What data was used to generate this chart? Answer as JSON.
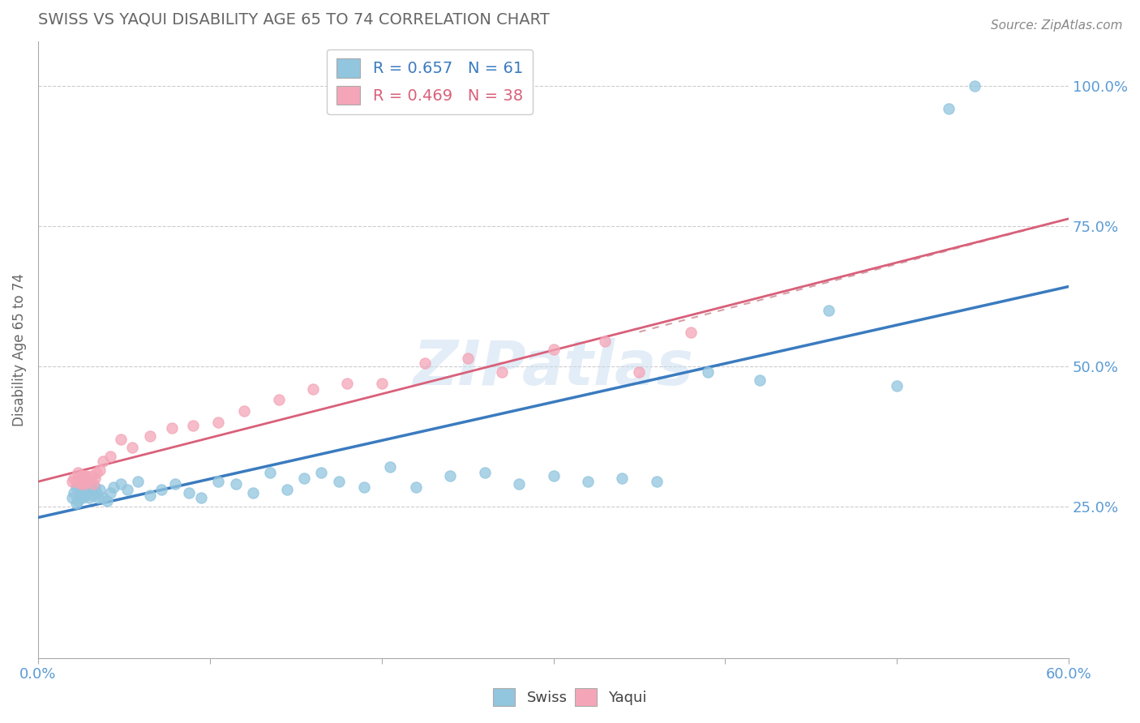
{
  "title": "SWISS VS YAQUI DISABILITY AGE 65 TO 74 CORRELATION CHART",
  "source_text": "Source: ZipAtlas.com",
  "ylabel": "Disability Age 65 to 74",
  "xlim": [
    0.0,
    0.6
  ],
  "ylim": [
    -0.02,
    1.08
  ],
  "yticks": [
    0.25,
    0.5,
    0.75,
    1.0
  ],
  "ytick_labels": [
    "25.0%",
    "50.0%",
    "75.0%",
    "100.0%"
  ],
  "xticks": [
    0.0,
    0.1,
    0.2,
    0.3,
    0.4,
    0.5,
    0.6
  ],
  "xtick_labels": [
    "0.0%",
    "",
    "",
    "",
    "",
    "",
    "60.0%"
  ],
  "legend_swiss": "R = 0.657   N = 61",
  "legend_yaqui": "R = 0.469   N = 38",
  "swiss_color": "#92c5de",
  "yaqui_color": "#f4a6b8",
  "swiss_line_color": "#3a7bbf",
  "yaqui_line_color": "#d9607a",
  "yaqui_dash_color": "#d4a0a8",
  "grid_color": "#cccccc",
  "title_color": "#666666",
  "axis_color": "#5b9bd5",
  "watermark": "ZIPatlas",
  "swiss_x": [
    0.02,
    0.021,
    0.022,
    0.022,
    0.023,
    0.023,
    0.024,
    0.024,
    0.025,
    0.025,
    0.026,
    0.026,
    0.027,
    0.027,
    0.028,
    0.028,
    0.029,
    0.03,
    0.03,
    0.031,
    0.032,
    0.033,
    0.034,
    0.035,
    0.036,
    0.038,
    0.04,
    0.042,
    0.044,
    0.048,
    0.052,
    0.058,
    0.065,
    0.072,
    0.08,
    0.088,
    0.095,
    0.105,
    0.115,
    0.125,
    0.135,
    0.145,
    0.155,
    0.165,
    0.175,
    0.19,
    0.205,
    0.22,
    0.24,
    0.26,
    0.28,
    0.3,
    0.32,
    0.34,
    0.36,
    0.39,
    0.42,
    0.46,
    0.5,
    0.53,
    0.545
  ],
  "swiss_y": [
    0.265,
    0.275,
    0.255,
    0.285,
    0.26,
    0.29,
    0.265,
    0.285,
    0.27,
    0.295,
    0.265,
    0.29,
    0.275,
    0.3,
    0.27,
    0.295,
    0.28,
    0.265,
    0.29,
    0.28,
    0.27,
    0.285,
    0.275,
    0.265,
    0.28,
    0.265,
    0.26,
    0.275,
    0.285,
    0.29,
    0.28,
    0.295,
    0.27,
    0.28,
    0.29,
    0.275,
    0.265,
    0.295,
    0.29,
    0.275,
    0.31,
    0.28,
    0.3,
    0.31,
    0.295,
    0.285,
    0.32,
    0.285,
    0.305,
    0.31,
    0.29,
    0.305,
    0.295,
    0.3,
    0.295,
    0.49,
    0.475,
    0.6,
    0.465,
    0.96,
    1.0
  ],
  "yaqui_x": [
    0.02,
    0.021,
    0.022,
    0.023,
    0.024,
    0.025,
    0.025,
    0.026,
    0.027,
    0.027,
    0.028,
    0.029,
    0.03,
    0.031,
    0.032,
    0.033,
    0.034,
    0.036,
    0.038,
    0.042,
    0.048,
    0.055,
    0.065,
    0.078,
    0.09,
    0.105,
    0.12,
    0.14,
    0.16,
    0.18,
    0.2,
    0.225,
    0.25,
    0.27,
    0.3,
    0.33,
    0.35,
    0.38
  ],
  "yaqui_y": [
    0.295,
    0.3,
    0.295,
    0.31,
    0.295,
    0.305,
    0.29,
    0.295,
    0.305,
    0.29,
    0.305,
    0.295,
    0.295,
    0.305,
    0.29,
    0.3,
    0.31,
    0.315,
    0.33,
    0.34,
    0.37,
    0.355,
    0.375,
    0.39,
    0.395,
    0.4,
    0.42,
    0.44,
    0.46,
    0.47,
    0.47,
    0.505,
    0.515,
    0.49,
    0.53,
    0.545,
    0.49,
    0.56
  ]
}
